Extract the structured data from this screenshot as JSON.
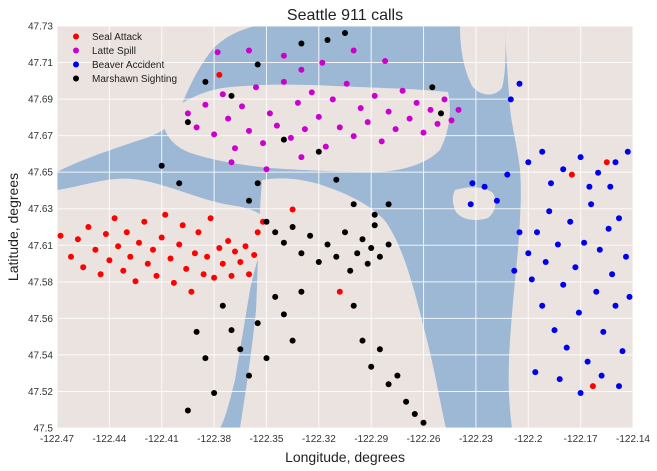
{
  "chart_data": {
    "type": "scatter",
    "title": "Seattle 911 calls",
    "xlabel": "Longitude, degrees",
    "ylabel": "Latitude, degrees",
    "xlim": [
      -122.47,
      -122.14
    ],
    "ylim": [
      47.5,
      47.73
    ],
    "x_ticks": [
      "-122.47",
      "-122.44",
      "-122.41",
      "-122.38",
      "-122.35",
      "-122.32",
      "-122.29",
      "-122.26",
      "-122.23",
      "-122.2",
      "-122.17",
      "-122.14"
    ],
    "y_ticks": [
      "47.5",
      "47.52",
      "47.54",
      "47.56",
      "47.58",
      "47.61",
      "47.63",
      "47.65",
      "47.67",
      "47.69",
      "47.71",
      "47.73"
    ],
    "grid": true,
    "legend_position": "top-left",
    "background": "terrain map",
    "series": [
      {
        "name": "Seal Attack",
        "color": "#ff0000",
        "points": [
          [
            -122.468,
            47.61
          ],
          [
            -122.462,
            47.598
          ],
          [
            -122.458,
            47.608
          ],
          [
            -122.455,
            47.592
          ],
          [
            -122.452,
            47.615
          ],
          [
            -122.448,
            47.602
          ],
          [
            -122.445,
            47.588
          ],
          [
            -122.442,
            47.611
          ],
          [
            -122.44,
            47.596
          ],
          [
            -122.437,
            47.62
          ],
          [
            -122.435,
            47.604
          ],
          [
            -122.432,
            47.59
          ],
          [
            -122.43,
            47.612
          ],
          [
            -122.428,
            47.598
          ],
          [
            -122.425,
            47.584
          ],
          [
            -122.423,
            47.606
          ],
          [
            -122.42,
            47.618
          ],
          [
            -122.418,
            47.594
          ],
          [
            -122.415,
            47.602
          ],
          [
            -122.413,
            47.587
          ],
          [
            -122.41,
            47.609
          ],
          [
            -122.408,
            47.622
          ],
          [
            -122.405,
            47.597
          ],
          [
            -122.403,
            47.583
          ],
          [
            -122.4,
            47.605
          ],
          [
            -122.398,
            47.616
          ],
          [
            -122.396,
            47.591
          ],
          [
            -122.393,
            47.578
          ],
          [
            -122.391,
            47.6
          ],
          [
            -122.389,
            47.612
          ],
          [
            -122.386,
            47.588
          ],
          [
            -122.384,
            47.598
          ],
          [
            -122.382,
            47.62
          ],
          [
            -122.38,
            47.586
          ],
          [
            -122.377,
            47.603
          ],
          [
            -122.375,
            47.594
          ],
          [
            -122.372,
            47.607
          ],
          [
            -122.37,
            47.587
          ],
          [
            -122.368,
            47.601
          ],
          [
            -122.365,
            47.595
          ],
          [
            -122.362,
            47.604
          ],
          [
            -122.36,
            47.588
          ],
          [
            -122.357,
            47.599
          ],
          [
            -122.355,
            47.612
          ],
          [
            -122.352,
            47.618
          ],
          [
            -122.335,
            47.625
          ],
          [
            -122.308,
            47.578
          ],
          [
            -122.377,
            47.702
          ],
          [
            -122.155,
            47.652
          ],
          [
            -122.175,
            47.645
          ],
          [
            -122.163,
            47.524
          ]
        ]
      },
      {
        "name": "Latte Spill",
        "color": "#cc00cc",
        "points": [
          [
            -122.395,
            47.68
          ],
          [
            -122.39,
            47.672
          ],
          [
            -122.385,
            47.685
          ],
          [
            -122.38,
            47.668
          ],
          [
            -122.375,
            47.691
          ],
          [
            -122.372,
            47.677
          ],
          [
            -122.368,
            47.66
          ],
          [
            -122.364,
            47.684
          ],
          [
            -122.36,
            47.67
          ],
          [
            -122.356,
            47.695
          ],
          [
            -122.352,
            47.663
          ],
          [
            -122.348,
            47.68
          ],
          [
            -122.344,
            47.673
          ],
          [
            -122.34,
            47.698
          ],
          [
            -122.336,
            47.666
          ],
          [
            -122.332,
            47.686
          ],
          [
            -122.328,
            47.671
          ],
          [
            -122.324,
            47.692
          ],
          [
            -122.32,
            47.678
          ],
          [
            -122.316,
            47.661
          ],
          [
            -122.312,
            47.688
          ],
          [
            -122.308,
            47.672
          ],
          [
            -122.304,
            47.697
          ],
          [
            -122.3,
            47.667
          ],
          [
            -122.296,
            47.683
          ],
          [
            -122.292,
            47.675
          ],
          [
            -122.288,
            47.69
          ],
          [
            -122.284,
            47.664
          ],
          [
            -122.28,
            47.681
          ],
          [
            -122.276,
            47.671
          ],
          [
            -122.272,
            47.693
          ],
          [
            -122.268,
            47.677
          ],
          [
            -122.264,
            47.686
          ],
          [
            -122.26,
            47.669
          ],
          [
            -122.256,
            47.682
          ],
          [
            -122.252,
            47.674
          ],
          [
            -122.248,
            47.688
          ],
          [
            -122.244,
            47.676
          ],
          [
            -122.24,
            47.682
          ],
          [
            -122.378,
            47.715
          ],
          [
            -122.36,
            47.716
          ],
          [
            -122.34,
            47.713
          ],
          [
            -122.33,
            47.705
          ],
          [
            -122.318,
            47.709
          ],
          [
            -122.3,
            47.716
          ],
          [
            -122.282,
            47.71
          ],
          [
            -122.35,
            47.648
          ],
          [
            -122.33,
            47.655
          ],
          [
            -122.37,
            47.652
          ]
        ]
      },
      {
        "name": "Beaver Accident",
        "color": "#0000ee",
        "points": [
          [
            -122.2,
            47.6
          ],
          [
            -122.198,
            47.585
          ],
          [
            -122.195,
            47.612
          ],
          [
            -122.192,
            47.57
          ],
          [
            -122.19,
            47.595
          ],
          [
            -122.188,
            47.624
          ],
          [
            -122.185,
            47.556
          ],
          [
            -122.183,
            47.605
          ],
          [
            -122.18,
            47.582
          ],
          [
            -122.178,
            47.546
          ],
          [
            -122.176,
            47.618
          ],
          [
            -122.173,
            47.592
          ],
          [
            -122.171,
            47.566
          ],
          [
            -122.168,
            47.606
          ],
          [
            -122.166,
            47.538
          ],
          [
            -122.164,
            47.628
          ],
          [
            -122.161,
            47.578
          ],
          [
            -122.159,
            47.602
          ],
          [
            -122.157,
            47.555
          ],
          [
            -122.154,
            47.614
          ],
          [
            -122.152,
            47.588
          ],
          [
            -122.15,
            47.57
          ],
          [
            -122.148,
            47.62
          ],
          [
            -122.146,
            47.544
          ],
          [
            -122.144,
            47.598
          ],
          [
            -122.142,
            47.575
          ],
          [
            -122.196,
            47.532
          ],
          [
            -122.182,
            47.528
          ],
          [
            -122.17,
            47.52
          ],
          [
            -122.158,
            47.53
          ],
          [
            -122.148,
            47.524
          ],
          [
            -122.205,
            47.612
          ],
          [
            -122.208,
            47.59
          ],
          [
            -122.232,
            47.64
          ],
          [
            -122.225,
            47.638
          ],
          [
            -122.218,
            47.63
          ],
          [
            -122.212,
            47.645
          ],
          [
            -122.21,
            47.688
          ],
          [
            -122.205,
            47.697
          ],
          [
            -122.2,
            47.652
          ],
          [
            -122.192,
            47.658
          ],
          [
            -122.18,
            47.648
          ],
          [
            -122.17,
            47.655
          ],
          [
            -122.16,
            47.646
          ],
          [
            -122.15,
            47.652
          ],
          [
            -122.143,
            47.658
          ],
          [
            -122.187,
            47.64
          ],
          [
            -122.165,
            47.638
          ],
          [
            -122.153,
            47.638
          ],
          [
            -122.233,
            47.628
          ]
        ]
      },
      {
        "name": "Marshawn Sighting",
        "color": "#000000",
        "points": [
          [
            -122.35,
            47.618
          ],
          [
            -122.345,
            47.612
          ],
          [
            -122.34,
            47.606
          ],
          [
            -122.335,
            47.615
          ],
          [
            -122.33,
            47.6
          ],
          [
            -122.325,
            47.61
          ],
          [
            -122.32,
            47.595
          ],
          [
            -122.315,
            47.605
          ],
          [
            -122.31,
            47.598
          ],
          [
            -122.305,
            47.612
          ],
          [
            -122.302,
            47.59
          ],
          [
            -122.298,
            47.6
          ],
          [
            -122.295,
            47.608
          ],
          [
            -122.292,
            47.594
          ],
          [
            -122.29,
            47.603
          ],
          [
            -122.288,
            47.616
          ],
          [
            -122.285,
            47.598
          ],
          [
            -122.28,
            47.605
          ],
          [
            -122.36,
            47.63
          ],
          [
            -122.355,
            47.64
          ],
          [
            -122.375,
            47.57
          ],
          [
            -122.37,
            47.556
          ],
          [
            -122.365,
            47.545
          ],
          [
            -122.36,
            47.53
          ],
          [
            -122.355,
            47.56
          ],
          [
            -122.35,
            47.54
          ],
          [
            -122.345,
            47.575
          ],
          [
            -122.34,
            47.565
          ],
          [
            -122.335,
            47.55
          ],
          [
            -122.33,
            47.578
          ],
          [
            -122.3,
            47.57
          ],
          [
            -122.295,
            47.55
          ],
          [
            -122.29,
            47.535
          ],
          [
            -122.285,
            47.545
          ],
          [
            -122.28,
            47.525
          ],
          [
            -122.275,
            47.53
          ],
          [
            -122.27,
            47.515
          ],
          [
            -122.265,
            47.508
          ],
          [
            -122.26,
            47.503
          ],
          [
            -122.38,
            47.52
          ],
          [
            -122.385,
            47.54
          ],
          [
            -122.39,
            47.555
          ],
          [
            -122.395,
            47.51
          ],
          [
            -122.4,
            47.64
          ],
          [
            -122.41,
            47.65
          ],
          [
            -122.395,
            47.675
          ],
          [
            -122.385,
            47.698
          ],
          [
            -122.37,
            47.69
          ],
          [
            -122.355,
            47.708
          ],
          [
            -122.33,
            47.72
          ],
          [
            -122.315,
            47.722
          ],
          [
            -122.305,
            47.726
          ],
          [
            -122.255,
            47.695
          ],
          [
            -122.25,
            47.68
          ],
          [
            -122.32,
            47.658
          ],
          [
            -122.34,
            47.665
          ],
          [
            -122.31,
            47.642
          ],
          [
            -122.3,
            47.628
          ],
          [
            -122.288,
            47.622
          ],
          [
            -122.28,
            47.628
          ]
        ]
      }
    ]
  }
}
